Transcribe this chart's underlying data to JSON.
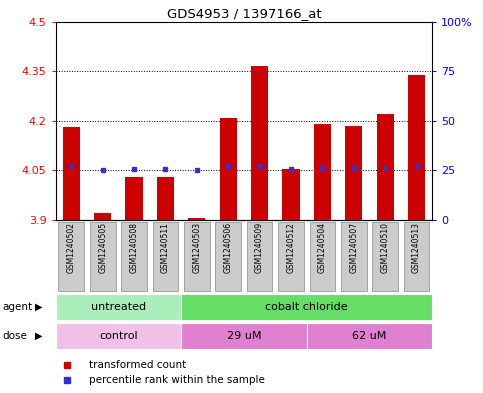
{
  "title": "GDS4953 / 1397166_at",
  "samples": [
    "GSM1240502",
    "GSM1240505",
    "GSM1240508",
    "GSM1240511",
    "GSM1240503",
    "GSM1240506",
    "GSM1240509",
    "GSM1240512",
    "GSM1240504",
    "GSM1240507",
    "GSM1240510",
    "GSM1240513"
  ],
  "bar_values": [
    4.18,
    3.92,
    4.03,
    4.03,
    3.905,
    4.21,
    4.365,
    4.055,
    4.19,
    4.185,
    4.22,
    4.34
  ],
  "bar_bottom": 3.9,
  "blue_dot_values": [
    4.063,
    4.051,
    4.054,
    4.054,
    4.051,
    4.065,
    4.065,
    4.054,
    4.056,
    4.056,
    4.057,
    4.062
  ],
  "ylim": [
    3.9,
    4.5
  ],
  "yticks_left": [
    3.9,
    4.05,
    4.2,
    4.35,
    4.5
  ],
  "ytick_left_labels": [
    "3.9",
    "4.05",
    "4.2",
    "4.35",
    "4.5"
  ],
  "yticks_right_vals": [
    3.9,
    4.05,
    4.2,
    4.35,
    4.5
  ],
  "ytick_right_labels": [
    "0",
    "25",
    "50",
    "75",
    "100%"
  ],
  "dotted_lines": [
    4.05,
    4.2,
    4.35
  ],
  "bar_color": "#cc0000",
  "blue_color": "#3333cc",
  "agent_groups": [
    {
      "label": "untreated",
      "start": 0,
      "end": 4,
      "color": "#aaeebb"
    },
    {
      "label": "cobalt chloride",
      "start": 4,
      "end": 12,
      "color": "#66dd66"
    }
  ],
  "dose_groups": [
    {
      "label": "control",
      "start": 0,
      "end": 4,
      "color": "#f0c0e8"
    },
    {
      "label": "29 uM",
      "start": 4,
      "end": 8,
      "color": "#e080d0"
    },
    {
      "label": "62 uM",
      "start": 8,
      "end": 12,
      "color": "#e080d0"
    }
  ],
  "legend_items": [
    {
      "label": "transformed count",
      "color": "#cc0000"
    },
    {
      "label": "percentile rank within the sample",
      "color": "#3333cc"
    }
  ],
  "agent_label": "agent",
  "dose_label": "dose",
  "bg_color": "#ffffff",
  "bar_width": 0.55,
  "label_box_color": "#cccccc",
  "label_box_edge": "#888888"
}
